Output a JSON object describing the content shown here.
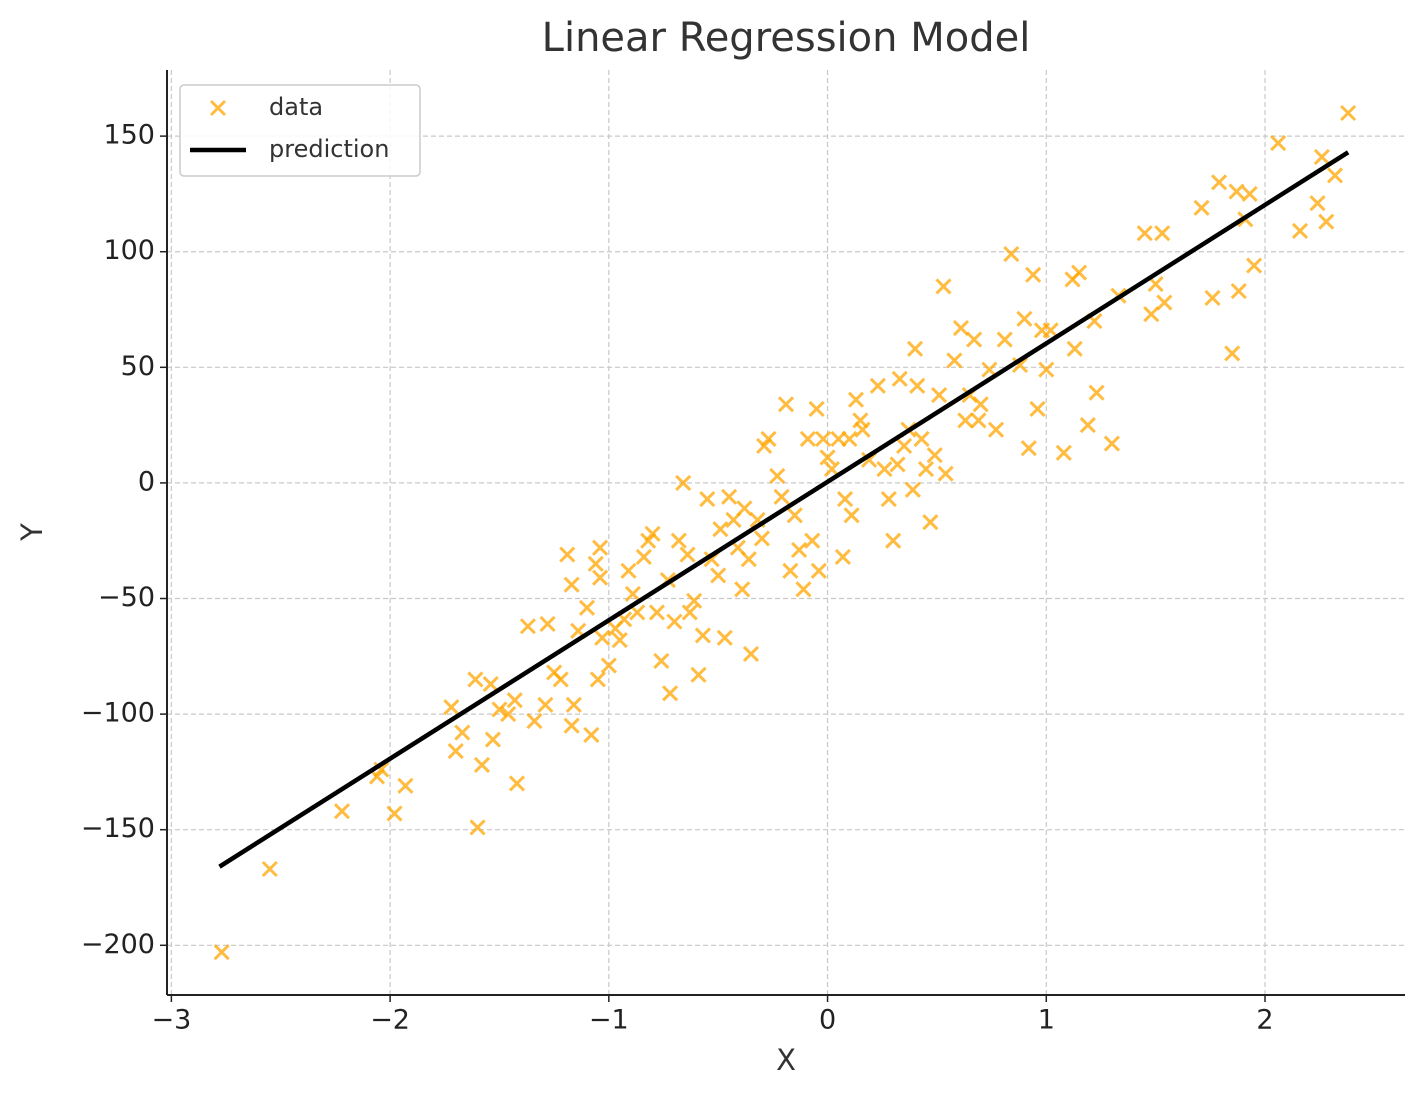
{
  "chart_data": {
    "type": "scatter",
    "title": "Linear Regression Model",
    "x_label": "X",
    "y_label": "Y",
    "xlim": [
      -3.02,
      2.64
    ],
    "ylim": [
      -221.5,
      178.6
    ],
    "xticks": [
      {
        "value": -3,
        "label": "−3"
      },
      {
        "value": -2,
        "label": "−2"
      },
      {
        "value": -1,
        "label": "−1"
      },
      0,
      1,
      2
    ],
    "yticks": [
      {
        "value": -200,
        "label": "−200"
      },
      {
        "value": -150,
        "label": "−150"
      },
      {
        "value": -100,
        "label": "−100"
      },
      {
        "value": -50,
        "label": "−50"
      },
      0,
      50,
      100,
      150
    ],
    "grid": true,
    "legend": "upper left",
    "series": [
      {
        "name": "data",
        "type": "scatter",
        "color": "#FFA500",
        "x": [
          -2.77,
          -2.55,
          -2.22,
          -2.06,
          -2.04,
          -1.98,
          -1.93,
          -1.72,
          -1.7,
          -1.67,
          -1.61,
          -1.6,
          -1.58,
          -1.54,
          -1.53,
          -1.5,
          -1.46,
          -1.43,
          -1.42,
          -1.37,
          -1.34,
          -1.29,
          -1.28,
          -1.25,
          -1.22,
          -1.19,
          -1.17,
          -1.16,
          -1.17,
          -1.14,
          -1.1,
          -1.08,
          -1.06,
          -1.05,
          -1.04,
          -1.04,
          -1.03,
          -1.0,
          -0.97,
          -0.95,
          -0.93,
          -0.91,
          -0.89,
          -0.87,
          -0.84,
          -0.82,
          -0.8,
          -0.78,
          -0.76,
          -0.73,
          -0.72,
          -0.7,
          -0.68,
          -0.66,
          -0.64,
          -0.63,
          -0.61,
          -0.59,
          -0.57,
          -0.55,
          -0.53,
          -0.5,
          -0.49,
          -0.47,
          -0.45,
          -0.43,
          -0.41,
          -0.39,
          -0.38,
          -0.36,
          -0.35,
          -0.32,
          -0.3,
          -0.29,
          -0.27,
          -0.23,
          -0.21,
          -0.19,
          -0.17,
          -0.15,
          -0.13,
          -0.11,
          -0.09,
          -0.07,
          -0.05,
          -0.04,
          -0.02,
          0,
          0.02,
          0.05,
          0.07,
          0.08,
          0.1,
          0.11,
          0.13,
          0.15,
          0.16,
          0.19,
          0.23,
          0.26,
          0.28,
          0.3,
          0.32,
          0.33,
          0.35,
          0.37,
          0.39,
          0.4,
          0.41,
          0.43,
          0.45,
          0.47,
          0.49,
          0.51,
          0.53,
          0.54,
          0.58,
          0.61,
          0.63,
          0.65,
          0.67,
          0.69,
          0.7,
          0.74,
          0.77,
          0.81,
          0.84,
          0.88,
          0.9,
          0.92,
          0.94,
          0.96,
          0.98,
          1.0,
          1.02,
          1.08,
          1.12,
          1.13,
          1.15,
          1.19,
          1.22,
          1.23,
          1.3,
          1.33,
          1.45,
          1.48,
          1.5,
          1.53,
          1.54,
          1.71,
          1.76,
          1.79,
          1.85,
          1.87,
          1.88,
          1.91,
          1.93,
          1.95,
          2.06,
          2.16,
          2.24,
          2.26,
          2.28,
          2.32,
          2.38
        ],
        "values": [
          -203,
          -167,
          -142,
          -127,
          -124,
          -143,
          -131,
          -97,
          -116,
          -108,
          -85,
          -149,
          -122,
          -87,
          -111,
          -98,
          -100,
          -94,
          -130,
          -62,
          -103,
          -96,
          -61,
          -82,
          -85,
          -31,
          -44,
          -96,
          -105,
          -64,
          -54,
          -109,
          -35,
          -85,
          -28,
          -41,
          -67,
          -79,
          -63,
          -68,
          -59,
          -38,
          -48,
          -56,
          -32,
          -25,
          -22,
          -56,
          -77,
          -42,
          -91,
          -60,
          -25,
          0,
          -31,
          -56,
          -51,
          -83,
          -66,
          -7,
          -33,
          -40,
          -20,
          -67,
          -6,
          -16,
          -28,
          -46,
          -11,
          -33,
          -74,
          -16,
          -24,
          16,
          19,
          3,
          -6,
          34,
          -38,
          -14,
          -29,
          -46,
          19,
          -25,
          32,
          -38,
          19,
          11,
          6,
          19,
          -32,
          -7,
          19,
          -14,
          36,
          27,
          23,
          10,
          42,
          6,
          -7,
          -25,
          8,
          45,
          16,
          23,
          -3,
          58,
          42,
          19,
          6,
          -17,
          12,
          38,
          85,
          4,
          53,
          67,
          27,
          38,
          62,
          27,
          34,
          49,
          23,
          62,
          99,
          51,
          71,
          15,
          90,
          32,
          66,
          49,
          66,
          13,
          88,
          58,
          91,
          25,
          70,
          39,
          17,
          81,
          108,
          73,
          86,
          108,
          78,
          119,
          80,
          130,
          56,
          126,
          83,
          114,
          125,
          94,
          147,
          109,
          121,
          141,
          113,
          133,
          160
        ]
      },
      {
        "name": "prediction",
        "type": "line",
        "color": "#000000",
        "x": [
          -2.78,
          2.38
        ],
        "values": [
          -166,
          143
        ]
      }
    ]
  }
}
